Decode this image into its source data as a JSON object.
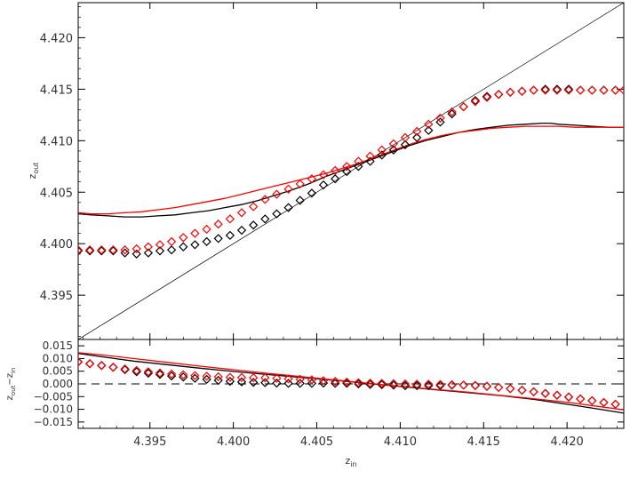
{
  "chart_data": [
    {
      "type": "scatter",
      "panel": "top",
      "xlim": [
        4.3907,
        4.4234
      ],
      "ylim": [
        4.3907,
        4.4234
      ],
      "xticks": [
        4.395,
        4.4,
        4.405,
        4.41,
        4.415,
        4.42
      ],
      "yticks": [
        4.395,
        4.4,
        4.405,
        4.41,
        4.415,
        4.42
      ],
      "ytick_labels": [
        "4.395",
        "4.400",
        "4.405",
        "4.410",
        "4.415",
        "4.420"
      ],
      "ylabel": "z",
      "ylabel_sub": "out",
      "grid": false,
      "legend": "none",
      "reference_line": {
        "type": "identity",
        "color": "#000000"
      },
      "series": [
        {
          "kind": "diamonds",
          "color": "#000000",
          "x": [
            4.3907,
            4.3914,
            4.3921,
            4.3928,
            4.3935,
            4.3942,
            4.3949,
            4.3956,
            4.3963,
            4.397,
            4.3977,
            4.3984,
            4.3991,
            4.3998,
            4.4005,
            4.4012,
            4.4019,
            4.4026,
            4.4033,
            4.404,
            4.4047,
            4.4054,
            4.4061,
            4.4068,
            4.4075,
            4.4082,
            4.4089,
            4.4096,
            4.4103,
            4.411,
            4.4117,
            4.4124,
            4.4131,
            4.4138,
            4.4145,
            4.4152,
            4.4159,
            4.4166,
            4.4173,
            4.418,
            4.4187,
            4.4194,
            4.4201,
            4.4208,
            4.4215,
            4.4222,
            4.4229
          ],
          "y": [
            4.3993,
            4.3993,
            4.3993,
            4.3993,
            4.3991,
            4.399,
            4.3991,
            4.3993,
            4.3994,
            4.3997,
            4.3999,
            4.4002,
            4.4005,
            4.4008,
            4.4013,
            4.4018,
            4.4024,
            4.4029,
            4.4035,
            4.4042,
            4.4049,
            4.4057,
            4.4063,
            4.407,
            4.4075,
            4.408,
            4.4086,
            4.4091,
            4.4096,
            4.4103,
            4.411,
            4.4118,
            4.4126,
            4.4133,
            4.4139,
            4.4143,
            4.4145,
            4.4147,
            4.4148,
            4.4149,
            4.415,
            4.415,
            4.415,
            4.4149,
            4.4149,
            4.4149,
            4.4149
          ]
        },
        {
          "kind": "diamonds",
          "color": "#ff0000",
          "x": [
            4.3907,
            4.3914,
            4.3921,
            4.3928,
            4.3935,
            4.3942,
            4.3949,
            4.3956,
            4.3963,
            4.397,
            4.3977,
            4.3984,
            4.3991,
            4.3998,
            4.4005,
            4.4012,
            4.4019,
            4.4026,
            4.4033,
            4.404,
            4.4047,
            4.4054,
            4.4061,
            4.4068,
            4.4075,
            4.4082,
            4.4089,
            4.4096,
            4.4103,
            4.411,
            4.4117,
            4.4124,
            4.4131,
            4.4138,
            4.4145,
            4.4152,
            4.4159,
            4.4166,
            4.4173,
            4.418,
            4.4187,
            4.4194,
            4.4201,
            4.4208,
            4.4215,
            4.4222,
            4.4229,
            4.4234
          ],
          "y": [
            4.3994,
            4.3994,
            4.3994,
            4.3994,
            4.3994,
            4.3995,
            4.3997,
            4.3999,
            4.4002,
            4.4006,
            4.401,
            4.4014,
            4.4019,
            4.4024,
            4.403,
            4.4036,
            4.4043,
            4.4048,
            4.4053,
            4.4058,
            4.4063,
            4.4067,
            4.4071,
            4.4075,
            4.408,
            4.4085,
            4.4091,
            4.4097,
            4.4103,
            4.4109,
            4.4116,
            4.4122,
            4.4128,
            4.4133,
            4.4138,
            4.4142,
            4.4145,
            4.4147,
            4.4148,
            4.4149,
            4.4149,
            4.4149,
            4.4149,
            4.4149,
            4.4149,
            4.4149,
            4.4149,
            4.4149
          ]
        },
        {
          "kind": "line",
          "color": "#000000",
          "x": [
            4.3907,
            4.3915,
            4.3925,
            4.3935,
            4.3945,
            4.3955,
            4.3965,
            4.3975,
            4.3985,
            4.3995,
            4.4005,
            4.4015,
            4.4025,
            4.4035,
            4.4045,
            4.4055,
            4.4065,
            4.4075,
            4.4085,
            4.4095,
            4.4105,
            4.4115,
            4.4125,
            4.4135,
            4.4145,
            4.4155,
            4.4165,
            4.4175,
            4.4185,
            4.419,
            4.4195,
            4.4205,
            4.4215,
            4.4225,
            4.4234
          ],
          "y": [
            4.4029,
            4.4028,
            4.4027,
            4.4026,
            4.4026,
            4.4027,
            4.4028,
            4.403,
            4.4032,
            4.4035,
            4.4038,
            4.4042,
            4.4047,
            4.4052,
            4.4058,
            4.4065,
            4.4071,
            4.4077,
            4.4083,
            4.4089,
            4.4095,
            4.41,
            4.4104,
            4.4108,
            4.4111,
            4.4113,
            4.4115,
            4.4116,
            4.4117,
            4.4117,
            4.4116,
            4.4115,
            4.4114,
            4.4113,
            4.4113
          ]
        },
        {
          "kind": "line",
          "color": "#ff0000",
          "x": [
            4.3907,
            4.3915,
            4.3925,
            4.3935,
            4.3945,
            4.3955,
            4.3965,
            4.3975,
            4.3985,
            4.3995,
            4.4005,
            4.4015,
            4.4025,
            4.4035,
            4.4045,
            4.4055,
            4.4065,
            4.4075,
            4.4085,
            4.4095,
            4.4105,
            4.4115,
            4.4125,
            4.4135,
            4.4145,
            4.4155,
            4.4165,
            4.4175,
            4.4185,
            4.4195,
            4.4205,
            4.4215,
            4.4225,
            4.4234
          ],
          "y": [
            4.403,
            4.4029,
            4.4029,
            4.403,
            4.4031,
            4.4033,
            4.4035,
            4.4038,
            4.4041,
            4.4044,
            4.4048,
            4.4052,
            4.4056,
            4.406,
            4.4064,
            4.4068,
            4.4073,
            4.4078,
            4.4084,
            4.409,
            4.4096,
            4.4101,
            4.4105,
            4.4108,
            4.411,
            4.4112,
            4.4113,
            4.4114,
            4.4114,
            4.4114,
            4.4113,
            4.4113,
            4.4113,
            4.4113
          ]
        }
      ]
    },
    {
      "type": "scatter",
      "panel": "bottom",
      "xlim": [
        4.3907,
        4.4234
      ],
      "ylim": [
        -0.0175,
        0.0175
      ],
      "xticks": [
        4.395,
        4.4,
        4.405,
        4.41,
        4.415,
        4.42
      ],
      "xtick_labels": [
        "4.395",
        "4.400",
        "4.405",
        "4.410",
        "4.415",
        "4.420"
      ],
      "yticks": [
        -0.015,
        -0.01,
        -0.005,
        0.0,
        0.005,
        0.01,
        0.015
      ],
      "ytick_labels": [
        "−0.015",
        "−0.010",
        "−0.005",
        "0.000",
        "0.005",
        "0.010",
        "0.015"
      ],
      "xlabel": "z",
      "xlabel_sub": "in",
      "ylabel_parts": [
        "z",
        "out",
        "−z",
        "in"
      ],
      "grid": false,
      "legend": "none",
      "reference_line": {
        "type": "horizontal",
        "y": 0.0,
        "style": "dashed",
        "color": "#000000"
      },
      "series": [
        {
          "kind": "diamonds",
          "color": "#000000",
          "x": [
            4.3907,
            4.3914,
            4.3921,
            4.3928,
            4.3935,
            4.3942,
            4.3949,
            4.3956,
            4.3963,
            4.397,
            4.3977,
            4.3984,
            4.3991,
            4.3998,
            4.4005,
            4.4012,
            4.4019,
            4.4026,
            4.4033,
            4.404,
            4.4047,
            4.4054,
            4.4061,
            4.4068,
            4.4075,
            4.4082,
            4.4089,
            4.4096,
            4.4103,
            4.411,
            4.4117,
            4.4124,
            4.4131,
            4.4138,
            4.4145,
            4.4152,
            4.4159,
            4.4166,
            4.4173,
            4.418,
            4.4187,
            4.4194,
            4.4201,
            4.4208,
            4.4215,
            4.4222,
            4.4229
          ],
          "y": [
            0.0086,
            0.0079,
            0.0072,
            0.0065,
            0.0056,
            0.0048,
            0.0042,
            0.0037,
            0.0031,
            0.0027,
            0.0022,
            0.0018,
            0.0014,
            0.001,
            0.0008,
            0.0006,
            0.0005,
            0.0003,
            0.0002,
            0.0002,
            0.0002,
            0.0003,
            0.0002,
            0.0002,
            0.0,
            -0.0002,
            -0.0003,
            -0.0005,
            -0.0007,
            -0.0007,
            -0.0007,
            -0.0006,
            -0.0005,
            -0.0005,
            -0.0006,
            -0.0009,
            -0.0014,
            -0.0019,
            -0.0025,
            -0.0031,
            -0.0037,
            -0.0044,
            -0.0051,
            -0.0059,
            -0.0066,
            -0.0073,
            -0.008
          ]
        },
        {
          "kind": "diamonds",
          "color": "#ff0000",
          "x": [
            4.3907,
            4.3914,
            4.3921,
            4.3928,
            4.3935,
            4.3942,
            4.3949,
            4.3956,
            4.3963,
            4.397,
            4.3977,
            4.3984,
            4.3991,
            4.3998,
            4.4005,
            4.4012,
            4.4019,
            4.4026,
            4.4033,
            4.404,
            4.4047,
            4.4054,
            4.4061,
            4.4068,
            4.4075,
            4.4082,
            4.4089,
            4.4096,
            4.4103,
            4.411,
            4.4117,
            4.4124,
            4.4131,
            4.4138,
            4.4145,
            4.4152,
            4.4159,
            4.4166,
            4.4173,
            4.418,
            4.4187,
            4.4194,
            4.4201,
            4.4208,
            4.4215,
            4.4222,
            4.4229
          ],
          "y": [
            0.0087,
            0.008,
            0.0073,
            0.0066,
            0.0059,
            0.0053,
            0.0048,
            0.0043,
            0.0039,
            0.0036,
            0.0033,
            0.003,
            0.0028,
            0.0026,
            0.0025,
            0.0024,
            0.0024,
            0.0022,
            0.002,
            0.0018,
            0.0016,
            0.0013,
            0.001,
            0.0007,
            0.0005,
            0.0003,
            0.0002,
            0.0001,
            0.0,
            -0.0001,
            -0.0001,
            -0.0002,
            -0.0003,
            -0.0005,
            -0.0007,
            -0.001,
            -0.0014,
            -0.0019,
            -0.0025,
            -0.0031,
            -0.0038,
            -0.0045,
            -0.0052,
            -0.0059,
            -0.0066,
            -0.0073,
            -0.008
          ]
        },
        {
          "kind": "line",
          "color": "#000000",
          "x": [
            4.3907,
            4.392,
            4.394,
            4.396,
            4.398,
            4.4,
            4.402,
            4.404,
            4.406,
            4.408,
            4.41,
            4.412,
            4.414,
            4.416,
            4.418,
            4.42,
            4.422,
            4.4234
          ],
          "y": [
            0.012,
            0.0108,
            0.009,
            0.0076,
            0.0062,
            0.0049,
            0.0037,
            0.0026,
            0.0015,
            0.0002,
            -0.001,
            -0.0022,
            -0.0034,
            -0.0046,
            -0.0061,
            -0.008,
            -0.01,
            -0.0115
          ]
        },
        {
          "kind": "line",
          "color": "#ff0000",
          "x": [
            4.3907,
            4.392,
            4.394,
            4.396,
            4.398,
            4.4,
            4.402,
            4.404,
            4.406,
            4.408,
            4.41,
            4.412,
            4.414,
            4.416,
            4.418,
            4.42,
            4.422,
            4.4234
          ],
          "y": [
            0.0123,
            0.0115,
            0.01,
            0.0085,
            0.007,
            0.0056,
            0.0042,
            0.0029,
            0.0016,
            0.0003,
            -0.0009,
            -0.0021,
            -0.0032,
            -0.0045,
            -0.0058,
            -0.0072,
            -0.009,
            -0.0102
          ]
        }
      ]
    }
  ]
}
